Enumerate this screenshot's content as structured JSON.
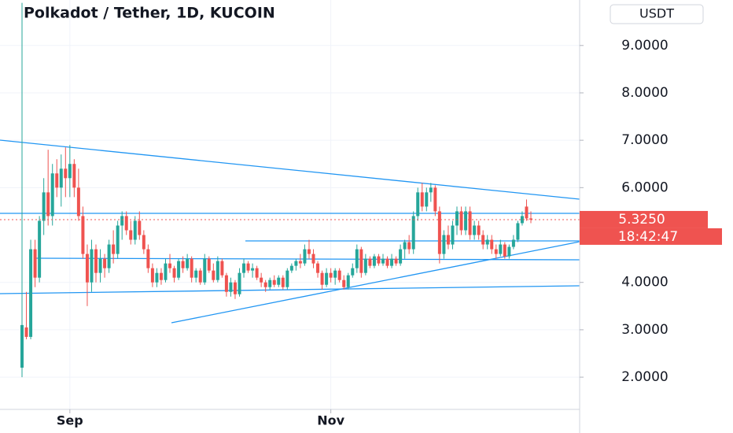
{
  "chart_data": {
    "type": "candlestick",
    "title": "Polkadot / Tether, 1D, KUCOIN",
    "currency": "USDT",
    "up_color": "#26a69a",
    "down_color": "#ef5350",
    "categories": [
      null,
      null,
      null,
      null,
      null,
      null,
      null,
      null,
      null,
      null,
      null,
      "Sep",
      null,
      null,
      null,
      null,
      null,
      null,
      null,
      null,
      null,
      null,
      null,
      null,
      null,
      null,
      null,
      null,
      null,
      null,
      null,
      null,
      null,
      null,
      null,
      null,
      null,
      null,
      null,
      null,
      null,
      null,
      null,
      null,
      null,
      null,
      null,
      null,
      null,
      null,
      null,
      null,
      null,
      null,
      null,
      null,
      null,
      null,
      null,
      null,
      null,
      null,
      null,
      null,
      null,
      null,
      null,
      null,
      null,
      null,
      null,
      "Nov",
      null,
      null,
      null,
      null,
      null,
      null,
      null,
      null,
      null,
      null,
      null,
      null,
      null,
      null,
      null,
      null,
      null,
      null,
      null,
      null,
      null,
      null,
      null,
      null,
      null,
      null,
      null,
      null,
      null,
      null,
      null,
      null,
      null,
      null,
      null,
      null,
      null,
      null,
      null,
      null,
      null,
      null,
      null,
      null,
      null,
      null
    ],
    "ohlc": [
      [
        2.2,
        9.9,
        2.0,
        3.1
      ],
      [
        3.05,
        3.8,
        2.8,
        2.85
      ],
      [
        2.85,
        4.9,
        2.8,
        4.7
      ],
      [
        4.7,
        4.9,
        3.9,
        4.1
      ],
      [
        4.1,
        5.4,
        4.0,
        5.3
      ],
      [
        5.3,
        6.2,
        5.0,
        5.9
      ],
      [
        5.9,
        6.8,
        5.2,
        5.4
      ],
      [
        5.4,
        6.5,
        5.2,
        6.3
      ],
      [
        6.3,
        6.6,
        5.8,
        6.0
      ],
      [
        6.0,
        6.7,
        5.6,
        6.4
      ],
      [
        6.4,
        6.85,
        5.8,
        6.2
      ],
      [
        6.2,
        6.9,
        5.8,
        6.5
      ],
      [
        6.5,
        6.6,
        5.8,
        6.0
      ],
      [
        6.0,
        6.4,
        5.3,
        5.4
      ],
      [
        5.4,
        5.6,
        4.5,
        4.6
      ],
      [
        4.6,
        4.8,
        3.5,
        4.0
      ],
      [
        4.0,
        4.9,
        3.8,
        4.7
      ],
      [
        4.7,
        4.8,
        4.0,
        4.2
      ],
      [
        4.2,
        4.7,
        4.0,
        4.5
      ],
      [
        4.5,
        4.6,
        4.1,
        4.3
      ],
      [
        4.3,
        4.9,
        4.2,
        4.8
      ],
      [
        4.8,
        5.1,
        4.4,
        4.6
      ],
      [
        4.6,
        5.3,
        4.5,
        5.2
      ],
      [
        5.2,
        5.5,
        4.9,
        5.4
      ],
      [
        5.4,
        5.5,
        5.0,
        5.1
      ],
      [
        5.1,
        5.3,
        4.8,
        4.9
      ],
      [
        4.9,
        5.4,
        4.8,
        5.3
      ],
      [
        5.3,
        5.5,
        4.9,
        5.0
      ],
      [
        5.0,
        5.1,
        4.6,
        4.7
      ],
      [
        4.7,
        4.8,
        4.2,
        4.3
      ],
      [
        4.3,
        4.4,
        3.9,
        4.0
      ],
      [
        4.0,
        4.3,
        3.9,
        4.2
      ],
      [
        4.2,
        4.3,
        3.95,
        4.05
      ],
      [
        4.05,
        4.5,
        4.0,
        4.4
      ],
      [
        4.4,
        4.6,
        4.2,
        4.3
      ],
      [
        4.3,
        4.35,
        4.0,
        4.1
      ],
      [
        4.1,
        4.5,
        4.05,
        4.45
      ],
      [
        4.45,
        4.55,
        4.2,
        4.3
      ],
      [
        4.3,
        4.6,
        4.25,
        4.5
      ],
      [
        4.5,
        4.55,
        4.0,
        4.1
      ],
      [
        4.1,
        4.3,
        4.0,
        4.25
      ],
      [
        4.25,
        4.3,
        3.95,
        4.0
      ],
      [
        4.0,
        4.6,
        3.95,
        4.5
      ],
      [
        4.5,
        4.55,
        4.2,
        4.25
      ],
      [
        4.25,
        4.4,
        4.0,
        4.05
      ],
      [
        4.05,
        4.55,
        4.0,
        4.45
      ],
      [
        4.45,
        4.5,
        4.1,
        4.15
      ],
      [
        4.15,
        4.2,
        3.7,
        3.8
      ],
      [
        3.8,
        4.1,
        3.7,
        4.0
      ],
      [
        4.0,
        4.05,
        3.65,
        3.75
      ],
      [
        3.75,
        4.3,
        3.7,
        4.2
      ],
      [
        4.2,
        4.5,
        4.1,
        4.4
      ],
      [
        4.4,
        4.45,
        4.2,
        4.25
      ],
      [
        4.25,
        4.4,
        4.1,
        4.3
      ],
      [
        4.3,
        4.35,
        4.05,
        4.1
      ],
      [
        4.1,
        4.2,
        3.9,
        4.0
      ],
      [
        4.0,
        4.05,
        3.8,
        3.9
      ],
      [
        3.9,
        4.1,
        3.85,
        4.05
      ],
      [
        4.05,
        4.15,
        3.9,
        3.95
      ],
      [
        3.95,
        4.15,
        3.9,
        4.1
      ],
      [
        4.1,
        4.15,
        3.85,
        3.9
      ],
      [
        3.9,
        4.3,
        3.85,
        4.25
      ],
      [
        4.25,
        4.4,
        4.2,
        4.35
      ],
      [
        4.35,
        4.5,
        4.25,
        4.45
      ],
      [
        4.45,
        4.6,
        4.3,
        4.4
      ],
      [
        4.4,
        4.8,
        4.35,
        4.7
      ],
      [
        4.7,
        4.9,
        4.5,
        4.6
      ],
      [
        4.6,
        4.7,
        4.3,
        4.4
      ],
      [
        4.4,
        4.45,
        4.1,
        4.2
      ],
      [
        4.2,
        4.25,
        3.85,
        3.95
      ],
      [
        3.95,
        4.3,
        3.9,
        4.2
      ],
      [
        4.2,
        4.3,
        4.0,
        4.1
      ],
      [
        4.1,
        4.3,
        3.95,
        4.25
      ],
      [
        4.25,
        4.3,
        4.0,
        4.05
      ],
      [
        4.05,
        4.15,
        3.85,
        3.9
      ],
      [
        3.9,
        4.2,
        3.85,
        4.15
      ],
      [
        4.15,
        4.4,
        4.1,
        4.3
      ],
      [
        4.3,
        4.8,
        4.2,
        4.7
      ],
      [
        4.7,
        4.75,
        4.1,
        4.2
      ],
      [
        4.2,
        4.6,
        4.15,
        4.5
      ],
      [
        4.5,
        4.55,
        4.3,
        4.35
      ],
      [
        4.35,
        4.6,
        4.3,
        4.55
      ],
      [
        4.55,
        4.6,
        4.35,
        4.4
      ],
      [
        4.4,
        4.6,
        4.35,
        4.5
      ],
      [
        4.5,
        4.55,
        4.3,
        4.35
      ],
      [
        4.35,
        4.6,
        4.3,
        4.5
      ],
      [
        4.5,
        4.55,
        4.35,
        4.4
      ],
      [
        4.4,
        4.8,
        4.35,
        4.7
      ],
      [
        4.7,
        4.9,
        4.5,
        4.85
      ],
      [
        4.85,
        5.0,
        4.6,
        4.7
      ],
      [
        4.7,
        5.5,
        4.6,
        5.4
      ],
      [
        5.4,
        6.0,
        5.3,
        5.9
      ],
      [
        5.9,
        6.1,
        5.5,
        5.6
      ],
      [
        5.6,
        6.0,
        5.5,
        5.9
      ],
      [
        5.9,
        6.1,
        5.7,
        6.0
      ],
      [
        6.0,
        6.05,
        5.4,
        5.5
      ],
      [
        5.5,
        5.6,
        4.4,
        4.6
      ],
      [
        4.6,
        5.1,
        4.5,
        5.0
      ],
      [
        5.0,
        5.2,
        4.7,
        4.8
      ],
      [
        4.8,
        5.3,
        4.7,
        5.2
      ],
      [
        5.2,
        5.6,
        5.0,
        5.5
      ],
      [
        5.5,
        5.6,
        5.0,
        5.1
      ],
      [
        5.1,
        5.6,
        5.0,
        5.5
      ],
      [
        5.5,
        5.6,
        4.9,
        5.0
      ],
      [
        5.0,
        5.3,
        4.9,
        5.2
      ],
      [
        5.2,
        5.3,
        4.9,
        5.0
      ],
      [
        5.0,
        5.1,
        4.7,
        4.8
      ],
      [
        4.8,
        5.0,
        4.7,
        4.9
      ],
      [
        4.9,
        5.0,
        4.6,
        4.7
      ],
      [
        4.7,
        4.8,
        4.5,
        4.6
      ],
      [
        4.6,
        4.9,
        4.55,
        4.8
      ],
      [
        4.8,
        4.85,
        4.5,
        4.55
      ],
      [
        4.55,
        4.8,
        4.5,
        4.75
      ],
      [
        4.75,
        5.0,
        4.7,
        4.9
      ],
      [
        4.9,
        5.3,
        4.85,
        5.25
      ],
      [
        5.25,
        5.5,
        5.2,
        5.4
      ],
      [
        5.6,
        5.75,
        5.3,
        5.35
      ],
      [
        5.35,
        5.5,
        5.25,
        5.325
      ]
    ],
    "last_price_label": "5.3250",
    "countdown": "18:42:47",
    "ylim": [
      1.32,
      9.96
    ],
    "yticks": [
      {
        "value": 2,
        "label": "2.0000"
      },
      {
        "value": 3,
        "label": "3.0000"
      },
      {
        "value": 4,
        "label": "4.0000"
      },
      {
        "value": 6,
        "label": "6.0000"
      },
      {
        "value": 7,
        "label": "7.0000"
      },
      {
        "value": 8,
        "label": "8.0000"
      },
      {
        "value": 9,
        "label": "9.0000"
      }
    ],
    "grid": true
  }
}
